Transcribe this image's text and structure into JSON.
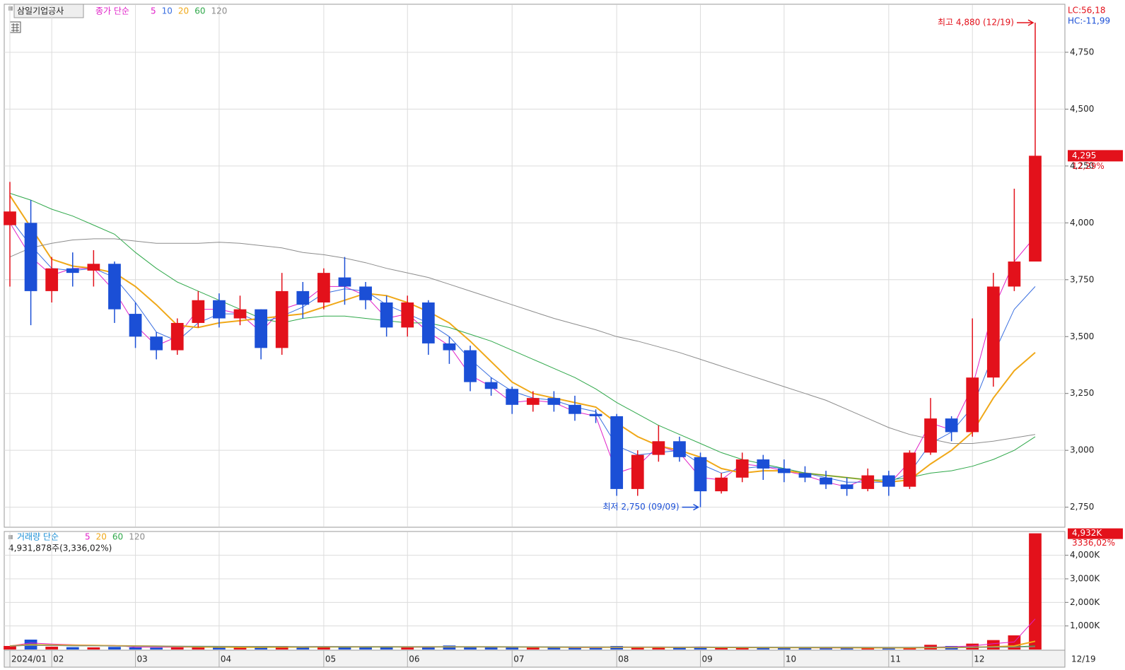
{
  "chart_data": [
    {
      "type": "candlestick",
      "title": "삼일기업공사",
      "legend_title": "종가 단순",
      "stats": [
        "LC:56,18",
        "HC:-11,99"
      ],
      "categories": [
        "2024/01",
        null,
        "02",
        null,
        null,
        null,
        "03",
        null,
        null,
        null,
        "04",
        null,
        null,
        null,
        null,
        "05",
        null,
        null,
        null,
        "06",
        null,
        null,
        null,
        null,
        "07",
        null,
        null,
        null,
        null,
        "08",
        null,
        null,
        null,
        "09",
        null,
        null,
        null,
        "10",
        null,
        null,
        null,
        null,
        "11",
        null,
        null,
        null,
        "12",
        null,
        null,
        null
      ],
      "x_end_label": "12/19",
      "open": [
        3990,
        4000,
        3700,
        3800,
        3790,
        3820,
        3600,
        3500,
        3440,
        3560,
        3660,
        3580,
        3620,
        3450,
        3700,
        3650,
        3760,
        3720,
        3650,
        3540,
        3650,
        3470,
        3440,
        3300,
        3270,
        3200,
        3230,
        3200,
        3160,
        3150,
        2830,
        2980,
        3040,
        2970,
        2820,
        2880,
        2960,
        2920,
        2900,
        2880,
        2850,
        2830,
        2890,
        2840,
        2990,
        3140,
        3080,
        3320,
        3720,
        3830
      ],
      "high": [
        4180,
        4100,
        3850,
        3870,
        3880,
        3830,
        3650,
        3520,
        3580,
        3700,
        3690,
        3680,
        3620,
        3780,
        3740,
        3800,
        3850,
        3740,
        3680,
        3680,
        3660,
        3500,
        3460,
        3320,
        3280,
        3260,
        3260,
        3240,
        3180,
        3160,
        3000,
        3110,
        3060,
        2990,
        2900,
        2990,
        2980,
        2960,
        2930,
        2910,
        2880,
        2920,
        2910,
        3000,
        3230,
        3150,
        3580,
        3780,
        4150,
        4880
      ],
      "low": [
        3720,
        3550,
        3650,
        3720,
        3720,
        3560,
        3450,
        3400,
        3420,
        3540,
        3540,
        3550,
        3400,
        3420,
        3580,
        3620,
        3640,
        3620,
        3500,
        3500,
        3420,
        3380,
        3260,
        3240,
        3160,
        3170,
        3170,
        3130,
        3120,
        2800,
        2800,
        2950,
        2950,
        2750,
        2810,
        2860,
        2870,
        2860,
        2860,
        2830,
        2800,
        2820,
        2800,
        2830,
        2980,
        3040,
        3060,
        3280,
        3700,
        3830
      ],
      "close": [
        4050,
        3700,
        3800,
        3780,
        3820,
        3620,
        3500,
        3440,
        3560,
        3660,
        3580,
        3620,
        3450,
        3700,
        3640,
        3780,
        3720,
        3660,
        3540,
        3650,
        3470,
        3440,
        3300,
        3270,
        3200,
        3230,
        3200,
        3160,
        3150,
        2830,
        2980,
        3040,
        2970,
        2820,
        2880,
        2960,
        2920,
        2900,
        2880,
        2850,
        2830,
        2890,
        2840,
        2990,
        3140,
        3080,
        3320,
        3720,
        3830,
        4295
      ],
      "up_color": "#e3111b",
      "down_color": "#1b4fd6",
      "series": [
        {
          "name": "5",
          "color": "#e020c8",
          "values": [
            4000,
            3850,
            3770,
            3800,
            3800,
            3700,
            3550,
            3460,
            3500,
            3620,
            3620,
            3600,
            3520,
            3620,
            3650,
            3720,
            3720,
            3680,
            3580,
            3600,
            3520,
            3460,
            3330,
            3280,
            3210,
            3220,
            3210,
            3170,
            3150,
            2900,
            2930,
            3020,
            2990,
            2880,
            2870,
            2940,
            2930,
            2910,
            2890,
            2860,
            2840,
            2880,
            2850,
            2950,
            3120,
            3090,
            3280,
            3620,
            3830,
            3940
          ]
        },
        {
          "name": "10",
          "color": "#3a6fe0",
          "values": [
            4020,
            3900,
            3800,
            3790,
            3800,
            3760,
            3650,
            3520,
            3480,
            3560,
            3600,
            3600,
            3560,
            3590,
            3630,
            3690,
            3710,
            3700,
            3640,
            3600,
            3560,
            3500,
            3400,
            3320,
            3260,
            3230,
            3220,
            3190,
            3170,
            3020,
            2980,
            2990,
            3000,
            2940,
            2900,
            2920,
            2930,
            2920,
            2900,
            2880,
            2860,
            2860,
            2860,
            2900,
            3030,
            3080,
            3190,
            3420,
            3620,
            3720
          ]
        },
        {
          "name": "20",
          "color": "#f0a818",
          "values": [
            4120,
            3980,
            3840,
            3810,
            3800,
            3780,
            3720,
            3640,
            3550,
            3540,
            3560,
            3570,
            3580,
            3590,
            3600,
            3630,
            3660,
            3690,
            3680,
            3650,
            3610,
            3560,
            3480,
            3390,
            3300,
            3250,
            3230,
            3210,
            3190,
            3120,
            3060,
            3020,
            3000,
            2970,
            2920,
            2900,
            2910,
            2910,
            2900,
            2890,
            2880,
            2870,
            2860,
            2870,
            2940,
            3000,
            3080,
            3230,
            3350,
            3430
          ]
        },
        {
          "name": "60",
          "color": "#2fa84a",
          "values": [
            4130,
            4100,
            4060,
            4030,
            3990,
            3950,
            3870,
            3800,
            3740,
            3700,
            3660,
            3620,
            3580,
            3560,
            3580,
            3590,
            3590,
            3580,
            3570,
            3560,
            3560,
            3540,
            3510,
            3480,
            3440,
            3400,
            3360,
            3320,
            3270,
            3210,
            3160,
            3110,
            3070,
            3030,
            2990,
            2960,
            2940,
            2920,
            2900,
            2890,
            2880,
            2870,
            2870,
            2880,
            2900,
            2910,
            2930,
            2960,
            3000,
            3060
          ]
        },
        {
          "name": "120",
          "color": "#8c8c8c",
          "values": [
            3850,
            3890,
            3910,
            3925,
            3930,
            3930,
            3920,
            3910,
            3910,
            3910,
            3915,
            3910,
            3900,
            3890,
            3870,
            3860,
            3845,
            3825,
            3800,
            3780,
            3760,
            3730,
            3700,
            3670,
            3640,
            3610,
            3580,
            3555,
            3530,
            3500,
            3480,
            3455,
            3430,
            3400,
            3370,
            3340,
            3310,
            3280,
            3250,
            3220,
            3180,
            3140,
            3100,
            3070,
            3050,
            3030,
            3030,
            3040,
            3055,
            3070
          ]
        }
      ],
      "ylim": [
        2665,
        4958
      ],
      "yticks": [
        {
          "value": 2750,
          "label": "2,750"
        },
        {
          "value": 3000,
          "label": "3,000"
        },
        {
          "value": 3250,
          "label": "3,250"
        },
        {
          "value": 3500,
          "label": "3,500"
        },
        {
          "value": 3750,
          "label": "3,750"
        },
        {
          "value": 4000,
          "label": "4,000"
        },
        {
          "value": 4250,
          "label": "4,250"
        },
        {
          "value": 4500,
          "label": "4,500"
        },
        {
          "value": 4750,
          "label": "4,750"
        }
      ],
      "grid": true,
      "annotations": [
        {
          "text": "최고 4,880 (12/19)",
          "value": 4880,
          "index": 49,
          "side": "left"
        },
        {
          "text": "최저 2,750 (09/09)",
          "value": 2750,
          "index": 33,
          "side": "left"
        }
      ],
      "current": {
        "value": 4295,
        "label": "4,295",
        "change": "12,29%"
      }
    },
    {
      "type": "bar",
      "legend_title": "거래량 단순",
      "info": "4,931,878주(3,336,02%)",
      "values": [
        150,
        420,
        120,
        100,
        90,
        110,
        90,
        80,
        100,
        110,
        90,
        100,
        120,
        150,
        110,
        130,
        100,
        90,
        100,
        90,
        110,
        170,
        120,
        100,
        90,
        80,
        90,
        80,
        70,
        150,
        110,
        90,
        80,
        120,
        90,
        80,
        70,
        70,
        60,
        60,
        60,
        70,
        60,
        90,
        200,
        150,
        250,
        400,
        600,
        4932
      ],
      "series": [
        {
          "name": "5",
          "color": "#e020c8",
          "values": [
            150,
            280,
            230,
            200,
            180,
            170,
            100,
            95,
            95,
            100,
            100,
            100,
            105,
            115,
            120,
            125,
            120,
            115,
            110,
            100,
            100,
            115,
            120,
            120,
            120,
            110,
            95,
            85,
            80,
            95,
            100,
            100,
            100,
            110,
            100,
            95,
            90,
            85,
            75,
            70,
            65,
            65,
            65,
            70,
            100,
            120,
            150,
            250,
            320,
            1300
          ]
        },
        {
          "name": "20",
          "color": "#f0a818",
          "values": [
            150,
            200,
            190,
            180,
            170,
            160,
            150,
            140,
            130,
            115,
            105,
            100,
            100,
            105,
            105,
            110,
            110,
            110,
            110,
            110,
            110,
            112,
            112,
            110,
            108,
            105,
            102,
            100,
            98,
            98,
            96,
            95,
            93,
            92,
            90,
            88,
            86,
            84,
            82,
            80,
            78,
            76,
            75,
            74,
            80,
            85,
            95,
            115,
            150,
            350
          ]
        },
        {
          "name": "60",
          "color": "#2fa84a",
          "values": [
            150,
            180,
            170,
            160,
            155,
            150,
            145,
            140,
            135,
            130,
            128,
            126,
            124,
            122,
            120,
            118,
            116,
            115,
            114,
            113,
            112,
            112,
            112,
            111,
            110,
            110,
            109,
            108,
            107,
            106,
            105,
            104,
            103,
            102,
            101,
            100,
            99,
            98,
            97,
            96,
            95,
            94,
            93,
            93,
            95,
            97,
            100,
            105,
            112,
            160
          ]
        },
        {
          "name": "120",
          "color": "#8c8c8c",
          "values": [
            150,
            170,
            165,
            160,
            155,
            150,
            148,
            145,
            142,
            140,
            138,
            136,
            134,
            132,
            130,
            128,
            126,
            124,
            122,
            120,
            118,
            116,
            114,
            113,
            112,
            111,
            110,
            109,
            108,
            107,
            106,
            105,
            104,
            103,
            102,
            101,
            100,
            99,
            98,
            97,
            96,
            95,
            94,
            93,
            93,
            94,
            95,
            97,
            100,
            120
          ]
        }
      ],
      "ylim": [
        0,
        4980
      ],
      "yticks": [
        {
          "value": 1000,
          "label": "1,000K"
        },
        {
          "value": 2000,
          "label": "2,000K"
        },
        {
          "value": 3000,
          "label": "3,000K"
        },
        {
          "value": 4000,
          "label": "4,000K"
        }
      ],
      "grid": true,
      "current": {
        "value": 4932,
        "label": "4,932K",
        "change": "3336,02%"
      }
    }
  ]
}
